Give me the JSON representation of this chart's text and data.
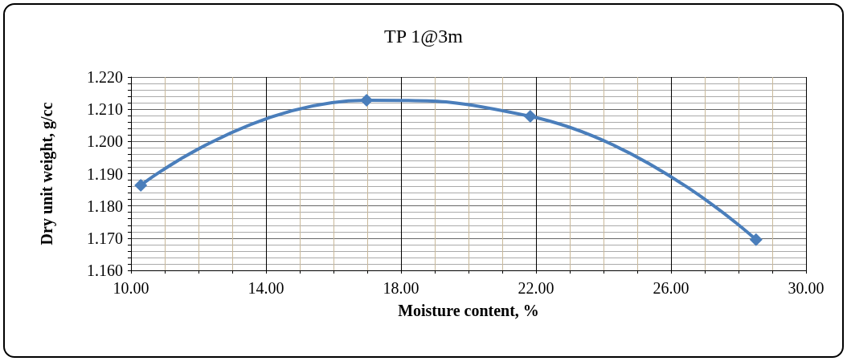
{
  "chart_data": {
    "type": "line",
    "title": "TP 1@3m",
    "xlabel": "Moisture content, %",
    "ylabel": "Dry unit weight, g/cc",
    "x": [
      10.29,
      16.98,
      21.83,
      28.52
    ],
    "series": [
      {
        "color": "#4a7ebb",
        "values": [
          1.1864,
          1.2128,
          1.2078,
          1.1695
        ]
      }
    ],
    "xlim": [
      10,
      30
    ],
    "xticks": [
      {
        "value": 10,
        "label": "10.00"
      },
      {
        "value": 11,
        "label": null
      },
      {
        "value": 12,
        "label": null
      },
      {
        "value": 13,
        "label": null
      },
      {
        "value": 14,
        "label": "14.00"
      },
      {
        "value": 15,
        "label": null
      },
      {
        "value": 16,
        "label": null
      },
      {
        "value": 17,
        "label": null
      },
      {
        "value": 18,
        "label": "18.00"
      },
      {
        "value": 19,
        "label": null
      },
      {
        "value": 20,
        "label": null
      },
      {
        "value": 21,
        "label": null
      },
      {
        "value": 22,
        "label": "22.00"
      },
      {
        "value": 23,
        "label": null
      },
      {
        "value": 24,
        "label": null
      },
      {
        "value": 25,
        "label": null
      },
      {
        "value": 26,
        "label": "26.00"
      },
      {
        "value": 27,
        "label": null
      },
      {
        "value": 28,
        "label": null
      },
      {
        "value": 29,
        "label": null
      },
      {
        "value": 30,
        "label": "30.00"
      }
    ],
    "ylim": [
      1.16,
      1.22
    ],
    "yticks": [
      {
        "value": 1.16,
        "label": "1.160"
      },
      {
        "value": 1.162,
        "label": null
      },
      {
        "value": 1.164,
        "label": null
      },
      {
        "value": 1.166,
        "label": null
      },
      {
        "value": 1.168,
        "label": null
      },
      {
        "value": 1.17,
        "label": "1.170"
      },
      {
        "value": 1.172,
        "label": null
      },
      {
        "value": 1.174,
        "label": null
      },
      {
        "value": 1.176,
        "label": null
      },
      {
        "value": 1.178,
        "label": null
      },
      {
        "value": 1.18,
        "label": "1.180"
      },
      {
        "value": 1.182,
        "label": null
      },
      {
        "value": 1.184,
        "label": null
      },
      {
        "value": 1.186,
        "label": null
      },
      {
        "value": 1.188,
        "label": null
      },
      {
        "value": 1.19,
        "label": "1.190"
      },
      {
        "value": 1.192,
        "label": null
      },
      {
        "value": 1.194,
        "label": null
      },
      {
        "value": 1.196,
        "label": null
      },
      {
        "value": 1.198,
        "label": null
      },
      {
        "value": 1.2,
        "label": "1.200"
      },
      {
        "value": 1.202,
        "label": null
      },
      {
        "value": 1.204,
        "label": null
      },
      {
        "value": 1.206,
        "label": null
      },
      {
        "value": 1.208,
        "label": null
      },
      {
        "value": 1.21,
        "label": "1.210"
      },
      {
        "value": 1.212,
        "label": null
      },
      {
        "value": 1.214,
        "label": null
      },
      {
        "value": 1.216,
        "label": null
      },
      {
        "value": 1.218,
        "label": null
      },
      {
        "value": 1.22,
        "label": "1.220"
      }
    ],
    "grid": true,
    "marker": "diamond",
    "line_style": "solid"
  }
}
